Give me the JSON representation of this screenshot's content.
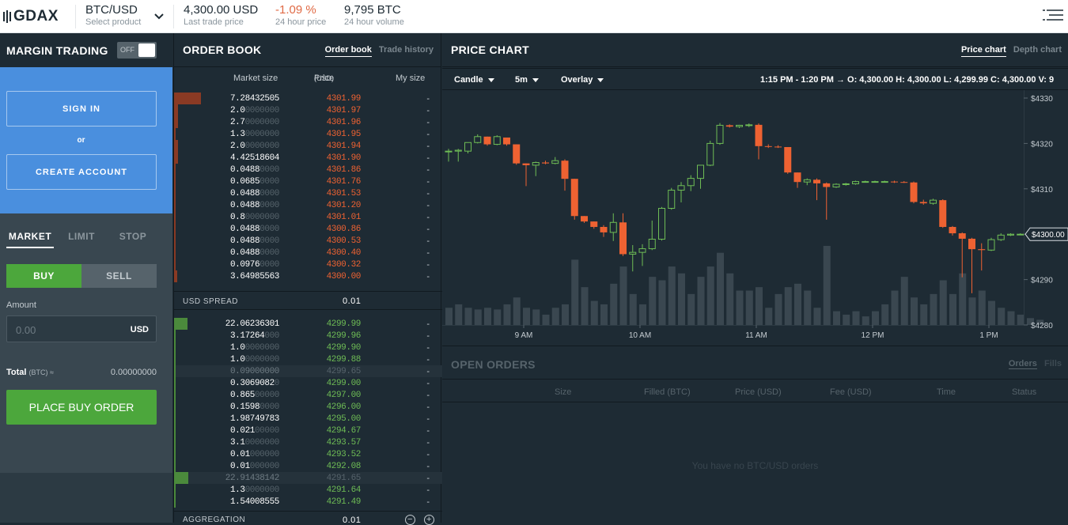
{
  "header": {
    "logo": "GDAX",
    "product": {
      "value": "BTC/USD",
      "label": "Select product"
    },
    "last_trade": {
      "value": "4,300.00 USD",
      "label": "Last trade price"
    },
    "change": {
      "value": "-1.09 %",
      "label": "24 hour price"
    },
    "volume": {
      "value": "9,795 BTC",
      "label": "24 hour volume"
    }
  },
  "sidebar": {
    "title": "MARGIN TRADING",
    "toggle_label": "OFF",
    "sign_in": "SIGN IN",
    "or": "or",
    "create_account": "CREATE ACCOUNT",
    "order_types": [
      "MARKET",
      "LIMIT",
      "STOP"
    ],
    "buy": "BUY",
    "sell": "SELL",
    "amount_label": "Amount",
    "amount_placeholder": "0.00",
    "amount_currency": "USD",
    "total_label": "Total",
    "total_unit": "(BTC) ≈",
    "total_value": "0.00000000",
    "place_order": "PLACE BUY ORDER"
  },
  "order_book": {
    "title": "ORDER BOOK",
    "tabs": [
      "Order book",
      "Trade history"
    ],
    "columns": {
      "size": "Market size",
      "price": "Price",
      "price_unit": "(USD)",
      "mine": "My size"
    },
    "asks": [
      {
        "size": "7.28432505",
        "digits": 10,
        "price": "4301.99",
        "mine": "-",
        "depth": 0.14
      },
      {
        "size": "2.0",
        "digits": 1,
        "price": "4301.97",
        "mine": "-",
        "depth": 0.02
      },
      {
        "size": "2.7",
        "digits": 1,
        "price": "4301.96",
        "mine": "-",
        "depth": 0.02
      },
      {
        "size": "1.3",
        "digits": 1,
        "price": "4301.95",
        "mine": "-",
        "depth": 0.01
      },
      {
        "size": "2.0",
        "digits": 1,
        "price": "4301.94",
        "mine": "-",
        "depth": 0.02
      },
      {
        "size": "4.42518604",
        "digits": 10,
        "price": "4301.90",
        "mine": "-",
        "depth": 0.02
      },
      {
        "size": "0.0488",
        "digits": 4,
        "price": "4301.86",
        "mine": "-",
        "depth": 0.005
      },
      {
        "size": "0.0685",
        "digits": 4,
        "price": "4301.76",
        "mine": "-",
        "depth": 0.005
      },
      {
        "size": "0.0488",
        "digits": 4,
        "price": "4301.53",
        "mine": "-",
        "depth": 0.005
      },
      {
        "size": "0.0488",
        "digits": 4,
        "price": "4301.20",
        "mine": "-",
        "depth": 0.005
      },
      {
        "size": "0.8",
        "digits": 1,
        "price": "4301.01",
        "mine": "-",
        "depth": 0.005
      },
      {
        "size": "0.0488",
        "digits": 4,
        "price": "4300.86",
        "mine": "-",
        "depth": 0.005
      },
      {
        "size": "0.0488",
        "digits": 4,
        "price": "4300.53",
        "mine": "-",
        "depth": 0.005
      },
      {
        "size": "0.0488",
        "digits": 4,
        "price": "4300.40",
        "mine": "-",
        "depth": 0.005
      },
      {
        "size": "0.0976",
        "digits": 4,
        "price": "4300.32",
        "mine": "-",
        "depth": 0.005
      },
      {
        "size": "3.64985563",
        "digits": 10,
        "price": "4300.00",
        "mine": "-",
        "depth": 0.015
      }
    ],
    "spread_label": "USD SPREAD",
    "spread_value": "0.01",
    "bids": [
      {
        "size": "22.06236301",
        "digits": 10,
        "price": "4299.99",
        "mine": "-",
        "depth": 0.07
      },
      {
        "size": "3.17264",
        "digits": 6,
        "price": "4299.96",
        "mine": "-",
        "depth": 0.01
      },
      {
        "size": "1.0",
        "digits": 1,
        "price": "4299.90",
        "mine": "-",
        "depth": 0.005
      },
      {
        "size": "1.0",
        "digits": 1,
        "price": "4299.88",
        "mine": "-",
        "depth": 0.005
      },
      {
        "size": "0.09000000",
        "digits": 10,
        "price": "4299.65",
        "mine": "-",
        "depth": 0,
        "faded": true
      },
      {
        "size": "0.3069082",
        "digits": 8,
        "price": "4299.00",
        "mine": "-",
        "depth": 0.005
      },
      {
        "size": "0.865",
        "digits": 3,
        "price": "4297.00",
        "mine": "-",
        "depth": 0.005
      },
      {
        "size": "0.1598",
        "digits": 4,
        "price": "4296.00",
        "mine": "-",
        "depth": 0.005
      },
      {
        "size": "1.98749783",
        "digits": 10,
        "price": "4295.00",
        "mine": "-",
        "depth": 0.008
      },
      {
        "size": "0.021",
        "digits": 3,
        "price": "4294.67",
        "mine": "-",
        "depth": 0.005
      },
      {
        "size": "3.1",
        "digits": 1,
        "price": "4293.57",
        "mine": "-",
        "depth": 0.01
      },
      {
        "size": "0.01",
        "digits": 2,
        "price": "4293.52",
        "mine": "-",
        "depth": 0.005
      },
      {
        "size": "0.01",
        "digits": 2,
        "price": "4292.08",
        "mine": "-",
        "depth": 0.005
      },
      {
        "size": "22.91438142",
        "digits": 10,
        "price": "4291.65",
        "mine": "-",
        "depth": 0.075,
        "faded": true
      },
      {
        "size": "1.3",
        "digits": 1,
        "price": "4291.64",
        "mine": "-",
        "depth": 0.005
      },
      {
        "size": "1.54008555",
        "digits": 10,
        "price": "4291.49",
        "mine": "-",
        "depth": 0.005
      }
    ],
    "aggregation_label": "AGGREGATION",
    "aggregation_value": "0.01",
    "minus_icon": "−",
    "plus_icon": "+"
  },
  "price_chart": {
    "title": "PRICE CHART",
    "tabs": [
      "Price chart",
      "Depth chart"
    ],
    "controls": [
      "Candle",
      "5m",
      "Overlay"
    ],
    "ohlc": "1:15 PM - 1:20 PM →  O: 4,300.00   H: 4,300.00   L: 4,299.99   C: 4,300.00   V: 9",
    "current_price_tag": "$4300.00"
  },
  "chart_data": {
    "type": "candlestick",
    "ylim": [
      4280,
      4330
    ],
    "y_ticks": [
      "$4330",
      "$4320",
      "$4310",
      "$4300",
      "$4290",
      "$4280"
    ],
    "y_tick_values": [
      4330,
      4320,
      4310,
      4300,
      4290,
      4280
    ],
    "x_ticks": [
      "9 AM",
      "10 AM",
      "11 AM",
      "12 PM",
      "1 PM"
    ],
    "x_tick_index": [
      8,
      20,
      32,
      44,
      56
    ],
    "up_color": "#6ebc55",
    "down_color": "#ee6232",
    "candles": [
      {
        "o": 4318.3,
        "h": 4318.8,
        "l": 4316.0,
        "c": 4318.3,
        "v": 10
      },
      {
        "o": 4318.3,
        "h": 4318.8,
        "l": 4316.0,
        "c": 4318.5,
        "v": 12
      },
      {
        "o": 4318.3,
        "h": 4320.2,
        "l": 4317.8,
        "c": 4320.2,
        "v": 10
      },
      {
        "o": 4320.2,
        "h": 4322.0,
        "l": 4320.0,
        "c": 4321.5,
        "v": 9
      },
      {
        "o": 4321.5,
        "h": 4321.5,
        "l": 4319.5,
        "c": 4319.8,
        "v": 10
      },
      {
        "o": 4319.8,
        "h": 4321.8,
        "l": 4319.6,
        "c": 4321.5,
        "v": 9
      },
      {
        "o": 4321.3,
        "h": 4321.3,
        "l": 4319.5,
        "c": 4319.8,
        "v": 12
      },
      {
        "o": 4319.8,
        "h": 4319.8,
        "l": 4315.3,
        "c": 4315.6,
        "v": 16
      },
      {
        "o": 4315.6,
        "h": 4315.6,
        "l": 4310.6,
        "c": 4315.2,
        "v": 10
      },
      {
        "o": 4315.2,
        "h": 4316.0,
        "l": 4312.8,
        "c": 4315.8,
        "v": 9
      },
      {
        "o": 4315.8,
        "h": 4316.2,
        "l": 4315.4,
        "c": 4315.6,
        "v": 6
      },
      {
        "o": 4315.6,
        "h": 4317.0,
        "l": 4315.4,
        "c": 4316.2,
        "v": 10
      },
      {
        "o": 4316.2,
        "h": 4316.5,
        "l": 4309.6,
        "c": 4312.2,
        "v": 12
      },
      {
        "o": 4312.2,
        "h": 4312.2,
        "l": 4303.2,
        "c": 4304.0,
        "v": 38
      },
      {
        "o": 4304.0,
        "h": 4304.0,
        "l": 4302.5,
        "c": 4302.8,
        "v": 22
      },
      {
        "o": 4302.8,
        "h": 4302.8,
        "l": 4301.2,
        "c": 4301.6,
        "v": 14
      },
      {
        "o": 4301.6,
        "h": 4302.0,
        "l": 4299.4,
        "c": 4300.4,
        "v": 12
      },
      {
        "o": 4300.4,
        "h": 4304.6,
        "l": 4298.5,
        "c": 4302.6,
        "v": 24
      },
      {
        "o": 4302.6,
        "h": 4304.6,
        "l": 4295.2,
        "c": 4295.6,
        "v": 34
      },
      {
        "o": 4295.6,
        "h": 4297.6,
        "l": 4291.8,
        "c": 4296.0,
        "v": 18
      },
      {
        "o": 4296.0,
        "h": 4297.8,
        "l": 4293.0,
        "c": 4296.8,
        "v": 12
      },
      {
        "o": 4296.8,
        "h": 4303.0,
        "l": 4296.5,
        "c": 4298.9,
        "v": 28
      },
      {
        "o": 4298.9,
        "h": 4306.0,
        "l": 4298.6,
        "c": 4305.7,
        "v": 26
      },
      {
        "o": 4305.7,
        "h": 4310.2,
        "l": 4305.4,
        "c": 4309.7,
        "v": 34
      },
      {
        "o": 4309.7,
        "h": 4311.5,
        "l": 4307.0,
        "c": 4310.7,
        "v": 30
      },
      {
        "o": 4310.7,
        "h": 4313.0,
        "l": 4309.5,
        "c": 4312.3,
        "v": 18
      },
      {
        "o": 4312.3,
        "h": 4315.2,
        "l": 4310.0,
        "c": 4315.2,
        "v": 28
      },
      {
        "o": 4315.2,
        "h": 4320.6,
        "l": 4315.0,
        "c": 4320.0,
        "v": 34
      },
      {
        "o": 4320.0,
        "h": 4324.5,
        "l": 4319.7,
        "c": 4324.0,
        "v": 42
      },
      {
        "o": 4324.0,
        "h": 4324.2,
        "l": 4323.5,
        "c": 4323.7,
        "v": 30
      },
      {
        "o": 4323.7,
        "h": 4324.1,
        "l": 4323.4,
        "c": 4324.0,
        "v": 20
      },
      {
        "o": 4324.0,
        "h": 4324.4,
        "l": 4323.6,
        "c": 4324.1,
        "v": 20
      },
      {
        "o": 4324.1,
        "h": 4324.4,
        "l": 4316.5,
        "c": 4319.4,
        "v": 22
      },
      {
        "o": 4319.4,
        "h": 4319.8,
        "l": 4319.0,
        "c": 4319.3,
        "v": 10
      },
      {
        "o": 4319.3,
        "h": 4319.6,
        "l": 4319.0,
        "c": 4319.2,
        "v": 18
      },
      {
        "o": 4319.2,
        "h": 4319.2,
        "l": 4313.3,
        "c": 4313.6,
        "v": 22
      },
      {
        "o": 4313.6,
        "h": 4313.6,
        "l": 4310.2,
        "c": 4311.5,
        "v": 24
      },
      {
        "o": 4311.5,
        "h": 4312.3,
        "l": 4310.8,
        "c": 4312.0,
        "v": 20
      },
      {
        "o": 4312.0,
        "h": 4312.3,
        "l": 4307.5,
        "c": 4311.2,
        "v": 10
      },
      {
        "o": 4311.2,
        "h": 4311.4,
        "l": 4303.2,
        "c": 4310.4,
        "v": 46
      },
      {
        "o": 4310.4,
        "h": 4311.2,
        "l": 4310.2,
        "c": 4311.0,
        "v": 8
      },
      {
        "o": 4311.0,
        "h": 4311.3,
        "l": 4310.7,
        "c": 4311.1,
        "v": 6
      },
      {
        "o": 4311.1,
        "h": 4311.8,
        "l": 4310.9,
        "c": 4311.6,
        "v": 8
      },
      {
        "o": 4311.6,
        "h": 4311.8,
        "l": 4311.4,
        "c": 4311.6,
        "v": 5
      },
      {
        "o": 4311.6,
        "h": 4311.8,
        "l": 4311.4,
        "c": 4311.6,
        "v": 8
      },
      {
        "o": 4311.6,
        "h": 4311.8,
        "l": 4311.4,
        "c": 4311.6,
        "v": 12
      },
      {
        "o": 4311.6,
        "h": 4311.8,
        "l": 4311.3,
        "c": 4311.5,
        "v": 20
      },
      {
        "o": 4311.5,
        "h": 4311.7,
        "l": 4311.3,
        "c": 4311.4,
        "v": 28
      },
      {
        "o": 4311.4,
        "h": 4311.6,
        "l": 4306.8,
        "c": 4307.1,
        "v": 16
      },
      {
        "o": 4307.1,
        "h": 4307.6,
        "l": 4306.5,
        "c": 4306.8,
        "v": 12
      },
      {
        "o": 4306.8,
        "h": 4307.8,
        "l": 4306.5,
        "c": 4307.5,
        "v": 18
      },
      {
        "o": 4307.5,
        "h": 4307.7,
        "l": 4301.4,
        "c": 4301.6,
        "v": 26
      },
      {
        "o": 4301.6,
        "h": 4301.8,
        "l": 4299.7,
        "c": 4300.2,
        "v": 18
      },
      {
        "o": 4300.2,
        "h": 4300.4,
        "l": 4290.5,
        "c": 4299.0,
        "v": 30
      },
      {
        "o": 4299.0,
        "h": 4299.2,
        "l": 4287.0,
        "c": 4296.7,
        "v": 16
      },
      {
        "o": 4296.7,
        "h": 4298.0,
        "l": 4292.0,
        "c": 4296.5,
        "v": 20
      },
      {
        "o": 4296.5,
        "h": 4299.2,
        "l": 4296.3,
        "c": 4298.8,
        "v": 14
      },
      {
        "o": 4298.8,
        "h": 4300.2,
        "l": 4298.5,
        "c": 4299.8,
        "v": 10
      },
      {
        "o": 4299.8,
        "h": 4300.2,
        "l": 4299.6,
        "c": 4300.0,
        "v": 8
      },
      {
        "o": 4300.0,
        "h": 4300.2,
        "l": 4299.8,
        "c": 4300.0,
        "v": 6
      },
      {
        "o": 4300.0,
        "h": 4300.2,
        "l": 4299.8,
        "c": 4300.0,
        "v": 4
      },
      {
        "o": 4300.0,
        "h": 4300.2,
        "l": 4299.8,
        "c": 4300.0,
        "v": 3
      }
    ]
  },
  "open_orders": {
    "title": "OPEN ORDERS",
    "tabs": [
      "Orders",
      "Fills"
    ],
    "columns": [
      "Size",
      "Filled (BTC)",
      "Price (USD)",
      "Fee (USD)",
      "Time",
      "Status"
    ],
    "empty": "You have no BTC/USD orders"
  }
}
